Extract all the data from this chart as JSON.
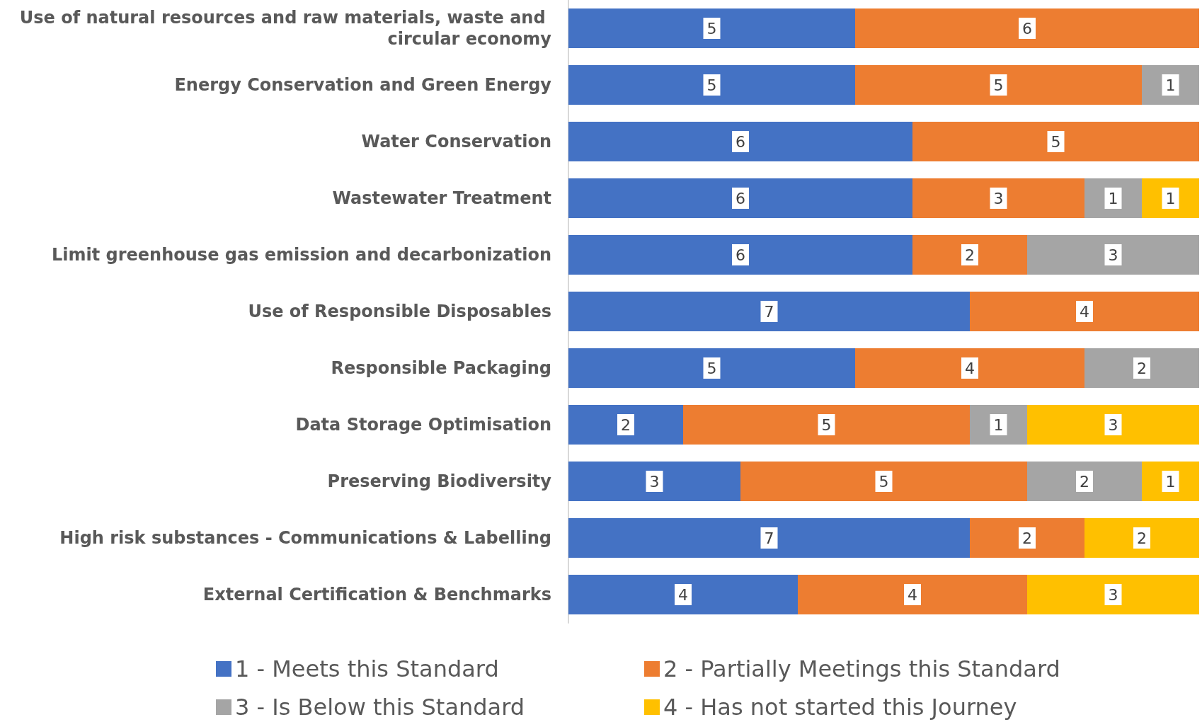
{
  "chart_data": {
    "type": "bar",
    "orientation": "horizontal",
    "stacked": true,
    "data_labels": true,
    "legend": "bottom",
    "grid": false,
    "tick_labels": "y",
    "xlim": [
      0,
      11
    ],
    "categories": [
      "Use of natural resources and raw materials, waste and circular economy",
      "Energy Conservation and Green Energy",
      "Water Conservation",
      "Wastewater Treatment",
      "Limit greenhouse gas emission and decarbonization",
      "Use of Responsible Disposables",
      "Responsible Packaging",
      "Data Storage Optimisation",
      "Preserving Biodiversity",
      "High risk substances - Communications & Labelling",
      "External Certification & Benchmarks"
    ],
    "series": [
      {
        "name": "1 - Meets this Standard",
        "color": "#4472c4",
        "values": [
          5,
          5,
          6,
          6,
          6,
          7,
          5,
          2,
          3,
          7,
          4
        ]
      },
      {
        "name": "2 - Partially Meetings this Standard",
        "color": "#ed7d31",
        "values": [
          6,
          5,
          5,
          3,
          2,
          4,
          4,
          5,
          5,
          2,
          4
        ]
      },
      {
        "name": "3 - Is Below this Standard",
        "color": "#a5a5a5",
        "values": [
          null,
          1,
          null,
          1,
          3,
          null,
          2,
          1,
          2,
          null,
          null
        ]
      },
      {
        "name": "4 - Has not started this Journey",
        "color": "#ffc000",
        "values": [
          null,
          null,
          null,
          1,
          null,
          null,
          null,
          3,
          1,
          2,
          3
        ]
      }
    ]
  }
}
